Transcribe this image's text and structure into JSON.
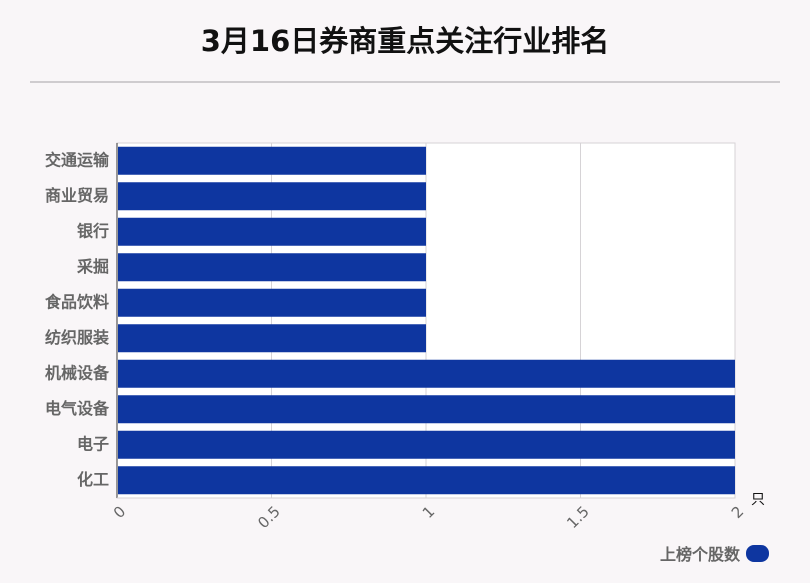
{
  "chart_data": {
    "type": "bar",
    "orientation": "horizontal",
    "title": "3月16日券商重点关注行业排名",
    "categories": [
      "交通运输",
      "商业贸易",
      "银行",
      "采掘",
      "食品饮料",
      "纺织服装",
      "机械设备",
      "电气设备",
      "电子",
      "化工"
    ],
    "series": [
      {
        "name": "上榜个股数",
        "values": [
          1,
          1,
          1,
          1,
          1,
          1,
          2,
          2,
          2,
          2
        ],
        "color": "#0e36a0"
      }
    ],
    "xlim": [
      0,
      2
    ],
    "xticks": [
      "0",
      "0.5",
      "1",
      "1.5",
      "2"
    ],
    "x_unit": "只",
    "grid": true,
    "legend_position": "bottom-right"
  }
}
